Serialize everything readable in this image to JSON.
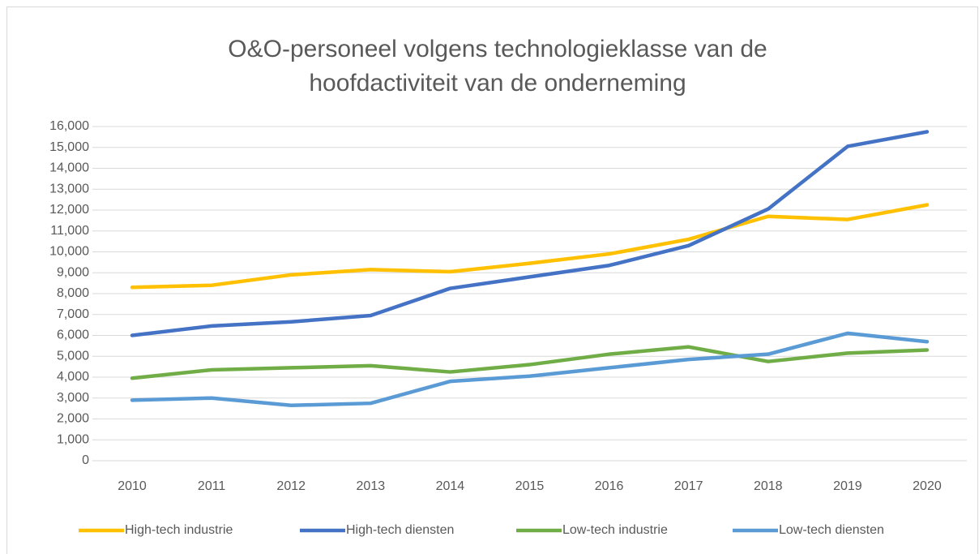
{
  "chart_data": {
    "type": "line",
    "title": [
      "O&O-personeel volgens technologieklasse van de",
      "hoofdactiviteit van de onderneming"
    ],
    "categories": [
      "2010",
      "2011",
      "2012",
      "2013",
      "2014",
      "2015",
      "2016",
      "2017",
      "2018",
      "2019",
      "2020"
    ],
    "series": [
      {
        "name": "High-tech industrie",
        "color": "#ffc000",
        "values": [
          8300,
          8400,
          8900,
          9150,
          9050,
          9450,
          9900,
          10600,
          11700,
          11550,
          12250
        ]
      },
      {
        "name": "High-tech diensten",
        "color": "#4472c4",
        "values": [
          6000,
          6450,
          6650,
          6950,
          8250,
          8800,
          9350,
          10300,
          12050,
          15050,
          15750
        ]
      },
      {
        "name": "Low-tech industrie",
        "color": "#70ad47",
        "values": [
          3950,
          4350,
          4450,
          4550,
          4250,
          4600,
          5100,
          5450,
          4750,
          5150,
          5300
        ]
      },
      {
        "name": "Low-tech diensten",
        "color": "#5b9bd5",
        "values": [
          2900,
          3000,
          2650,
          2750,
          3800,
          4050,
          4450,
          4850,
          5100,
          6100,
          5700
        ]
      }
    ],
    "ylim": [
      0,
      16000
    ],
    "yticks": [
      0,
      {
        "value": 1000,
        "label": "1,000"
      },
      {
        "value": 2000,
        "label": "2,000"
      },
      {
        "value": 3000,
        "label": "3,000"
      },
      {
        "value": 4000,
        "label": "4,000"
      },
      {
        "value": 5000,
        "label": "5,000"
      },
      {
        "value": 6000,
        "label": "6,000"
      },
      {
        "value": 7000,
        "label": "7,000"
      },
      {
        "value": 8000,
        "label": "8,000"
      },
      {
        "value": 9000,
        "label": "9,000"
      },
      {
        "value": 10000,
        "label": "10,000"
      },
      {
        "value": 11000,
        "label": "11,000"
      },
      {
        "value": 12000,
        "label": "12,000"
      },
      {
        "value": 13000,
        "label": "13,000"
      },
      {
        "value": 14000,
        "label": "14,000"
      },
      {
        "value": 15000,
        "label": "15,000"
      },
      {
        "value": 16000,
        "label": "16,000"
      }
    ],
    "grid": true,
    "legend": "bottom"
  }
}
